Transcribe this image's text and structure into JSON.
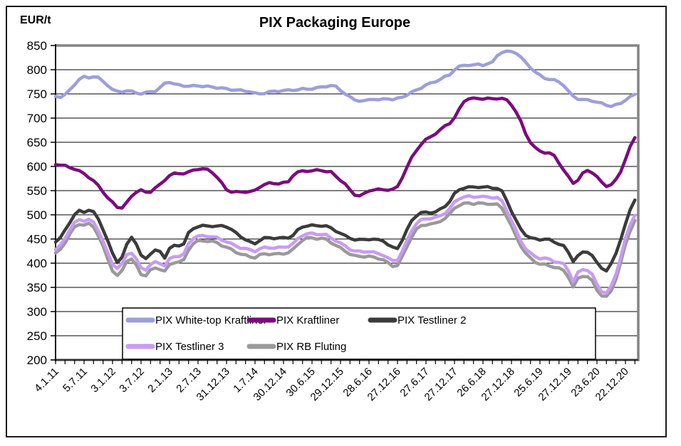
{
  "frame": {
    "title": "PIX Packaging Europe",
    "y_unit": "EUR/t"
  },
  "chart_data": {
    "type": "line",
    "title": "PIX Packaging Europe",
    "ylabel": "EUR/t",
    "xlabel": "",
    "ylim": [
      200,
      850
    ],
    "grid": true,
    "legend_position": "bottom-center-box",
    "y_ticks": [
      200,
      250,
      300,
      350,
      400,
      450,
      500,
      550,
      600,
      650,
      700,
      750,
      800,
      850
    ],
    "x_tick_labels": [
      "4.1.11",
      "5.7.11",
      "3.1.12",
      "3.7.12",
      "2.1.13",
      "2.7.13",
      "31.12.13",
      "1.7.14",
      "30.12.14",
      "30.6.15",
      "29.12.15",
      "28.6.16",
      "27.12.16",
      "27.6.17",
      "27.12.17",
      "26.6.18",
      "27.12.18",
      "25.6.19",
      "27.12.19",
      "23.6.20",
      "22.12.20"
    ],
    "points_per_year": 12,
    "legend_rows": [
      [
        0,
        1,
        2
      ],
      [
        3,
        4
      ]
    ],
    "series": [
      {
        "name": "PIX White-top Kraftliner",
        "color": "#9C9FD9",
        "values": [
          745,
          744,
          748,
          758,
          770,
          780,
          785,
          784,
          786,
          783,
          776,
          768,
          758,
          755,
          755,
          756,
          755,
          753,
          750,
          752,
          755,
          756,
          762,
          772,
          775,
          770,
          768,
          767,
          766,
          766,
          767,
          766,
          765,
          764,
          763,
          762,
          760,
          759,
          758,
          757,
          756,
          755,
          751,
          750,
          752,
          754,
          755,
          756,
          757,
          757,
          758,
          759,
          760,
          760,
          761,
          762,
          764,
          766,
          767,
          765,
          758,
          750,
          743,
          738,
          736,
          735,
          738,
          740,
          737,
          739,
          741,
          738,
          740,
          744,
          748,
          753,
          758,
          763,
          768,
          772,
          776,
          780,
          785,
          790,
          800,
          806,
          809,
          810,
          809,
          811,
          810,
          812,
          815,
          830,
          836,
          837,
          838,
          835,
          825,
          815,
          805,
          795,
          788,
          783,
          780,
          778,
          775,
          768,
          755,
          745,
          740,
          738,
          737,
          736,
          733,
          730,
          727,
          725,
          727,
          730,
          738,
          744,
          748
        ]
      },
      {
        "name": "PIX Kraftliner",
        "color": "#7B0B7D",
        "values": [
          605,
          603,
          601,
          598,
          595,
          590,
          585,
          578,
          570,
          560,
          548,
          535,
          525,
          516,
          515,
          525,
          538,
          548,
          551,
          546,
          548,
          556,
          562,
          572,
          582,
          585,
          585,
          586,
          588,
          592,
          595,
          595,
          593,
          588,
          578,
          565,
          552,
          548,
          547,
          547,
          548,
          548,
          550,
          558,
          563,
          565,
          565,
          565,
          566,
          568,
          582,
          588,
          590,
          591,
          591,
          592,
          592,
          590,
          588,
          580,
          572,
          563,
          551,
          542,
          539,
          543,
          550,
          552,
          552,
          552,
          552,
          552,
          558,
          578,
          598,
          618,
          634,
          646,
          655,
          662,
          668,
          675,
          684,
          690,
          700,
          718,
          735,
          740,
          740,
          741,
          740,
          740,
          740,
          741,
          740,
          737,
          728,
          712,
          692,
          668,
          650,
          638,
          632,
          629,
          627,
          622,
          608,
          592,
          578,
          566,
          572,
          585,
          592,
          588,
          578,
          567,
          560,
          562,
          572,
          590,
          615,
          640,
          660
        ]
      },
      {
        "name": "PIX Testliner 2",
        "color": "#3B3B3B",
        "values": [
          445,
          452,
          468,
          485,
          500,
          508,
          506,
          510,
          505,
          492,
          470,
          445,
          420,
          403,
          412,
          438,
          455,
          440,
          415,
          410,
          420,
          426,
          424,
          412,
          430,
          436,
          437,
          440,
          462,
          472,
          476,
          477,
          477,
          477,
          476,
          477,
          476,
          470,
          462,
          455,
          449,
          443,
          440,
          448,
          452,
          452,
          452,
          452,
          452,
          453,
          458,
          468,
          475,
          478,
          478,
          477,
          478,
          477,
          472,
          467,
          462,
          456,
          452,
          449,
          448,
          449,
          450,
          449,
          448,
          447,
          438,
          432,
          431,
          448,
          468,
          488,
          499,
          504,
          505,
          505,
          506,
          511,
          518,
          528,
          543,
          552,
          556,
          557,
          557,
          558,
          557,
          557,
          556,
          555,
          548,
          530,
          508,
          487,
          470,
          459,
          452,
          450,
          449,
          450,
          448,
          444,
          440,
          435,
          422,
          405,
          415,
          422,
          424,
          416,
          400,
          390,
          385,
          398,
          420,
          450,
          480,
          510,
          532
        ]
      },
      {
        "name": "PIX Testliner 3",
        "color": "#C89BF4",
        "values": [
          428,
          436,
          452,
          470,
          483,
          490,
          488,
          490,
          484,
          468,
          445,
          420,
          398,
          390,
          398,
          418,
          422,
          408,
          390,
          387,
          397,
          402,
          400,
          395,
          408,
          414,
          415,
          418,
          440,
          452,
          456,
          456,
          456,
          455,
          452,
          448,
          445,
          440,
          435,
          432,
          430,
          427,
          425,
          430,
          432,
          432,
          432,
          432,
          433,
          435,
          440,
          450,
          458,
          461,
          461,
          460,
          460,
          458,
          452,
          447,
          441,
          435,
          429,
          425,
          424,
          424,
          424,
          422,
          420,
          417,
          410,
          405,
          407,
          424,
          446,
          468,
          482,
          489,
          492,
          493,
          494,
          498,
          504,
          512,
          526,
          534,
          537,
          538,
          537,
          538,
          537,
          537,
          536,
          535,
          528,
          510,
          488,
          466,
          446,
          430,
          420,
          414,
          410,
          410,
          408,
          404,
          401,
          398,
          385,
          362,
          380,
          387,
          386,
          376,
          356,
          342,
          338,
          352,
          378,
          412,
          450,
          480,
          500
        ]
      },
      {
        "name": "PIX RB Fluting",
        "color": "#9A9A9A",
        "values": [
          420,
          428,
          443,
          460,
          474,
          481,
          479,
          481,
          475,
          458,
          434,
          408,
          385,
          374,
          384,
          405,
          409,
          395,
          377,
          375,
          385,
          390,
          388,
          383,
          396,
          402,
          403,
          406,
          428,
          441,
          446,
          446,
          446,
          445,
          442,
          437,
          433,
          428,
          423,
          419,
          416,
          413,
          412,
          417,
          419,
          419,
          419,
          419,
          420,
          422,
          428,
          439,
          448,
          452,
          452,
          451,
          451,
          449,
          443,
          437,
          431,
          425,
          419,
          415,
          414,
          414,
          414,
          412,
          410,
          407,
          400,
          394,
          396,
          413,
          434,
          455,
          470,
          477,
          480,
          481,
          482,
          487,
          493,
          501,
          514,
          520,
          523,
          524,
          523,
          524,
          523,
          523,
          522,
          521,
          514,
          497,
          476,
          455,
          436,
          420,
          410,
          403,
          398,
          397,
          395,
          392,
          389,
          385,
          372,
          350,
          368,
          374,
          372,
          363,
          345,
          333,
          330,
          343,
          368,
          400,
          438,
          468,
          488
        ]
      }
    ]
  }
}
